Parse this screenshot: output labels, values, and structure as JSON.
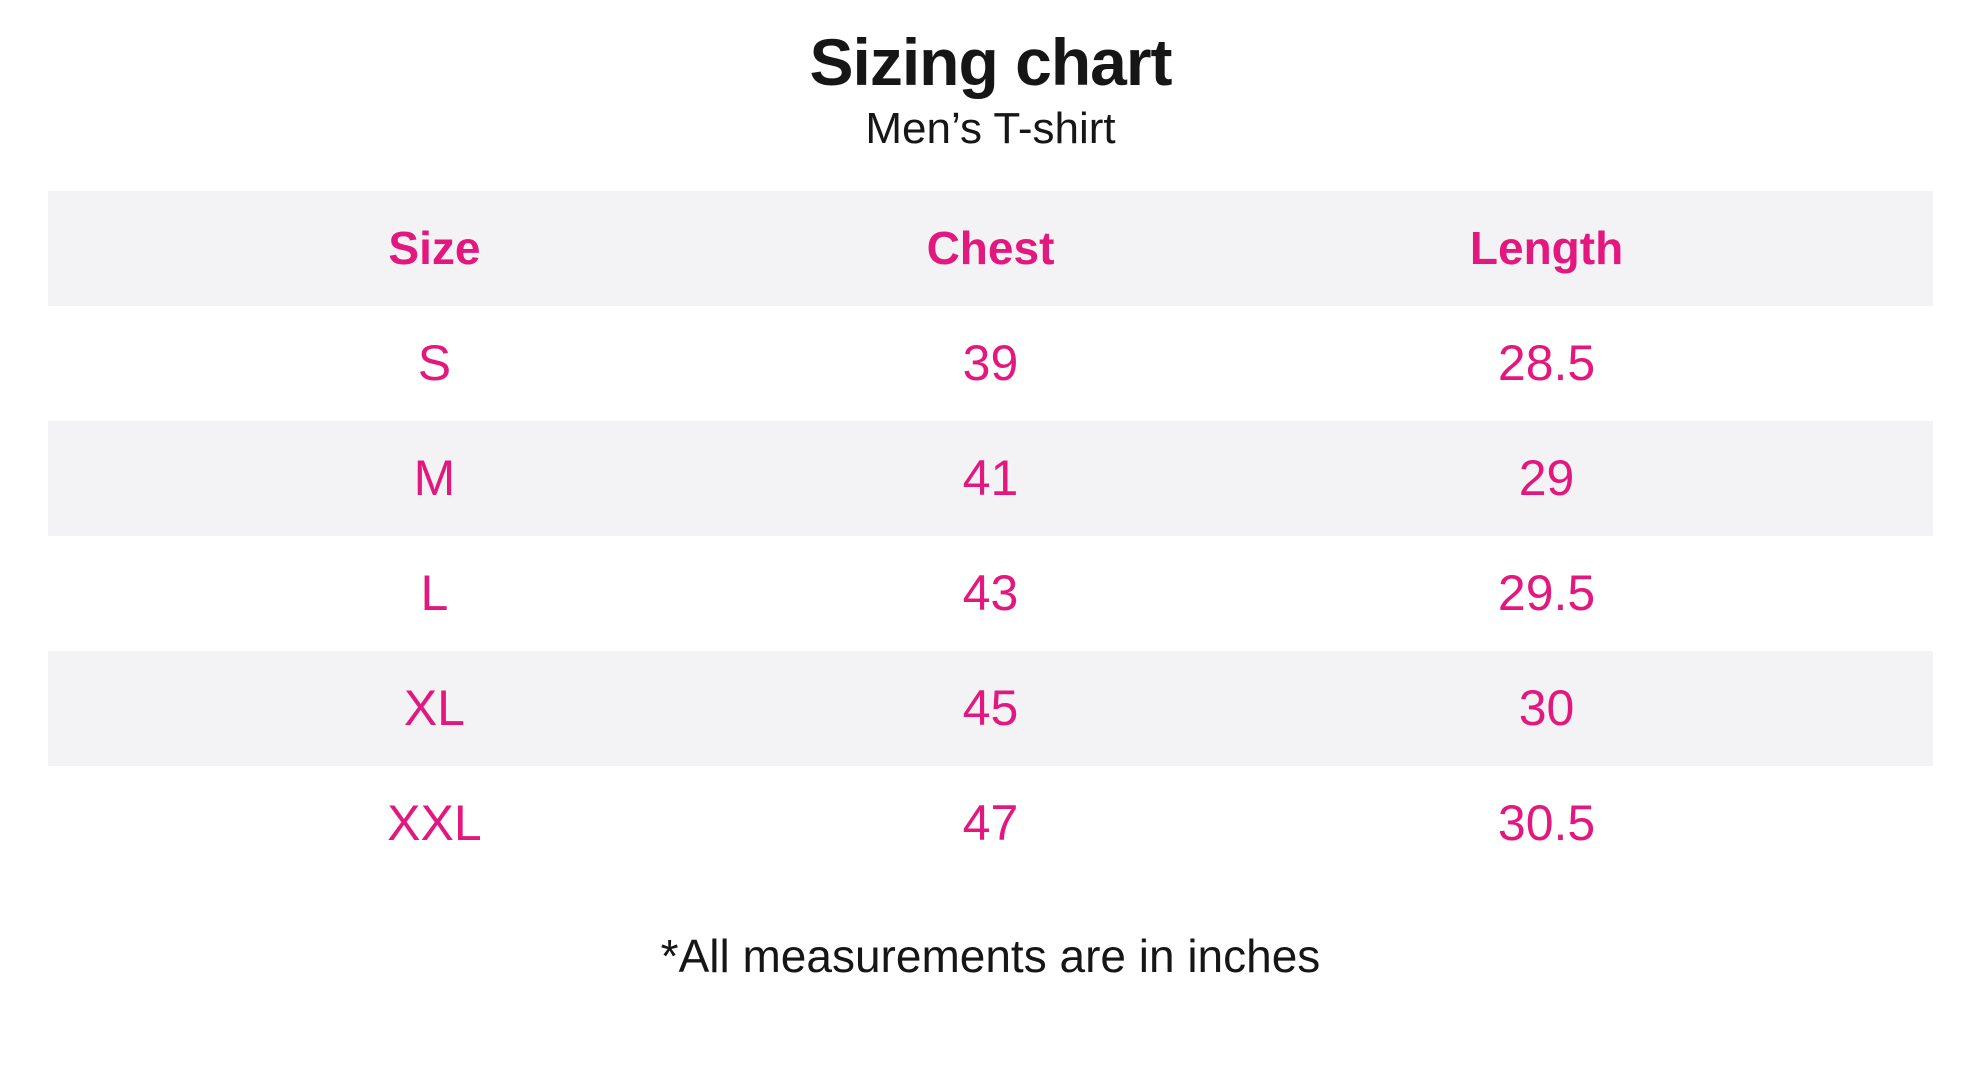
{
  "page": {
    "title": "Sizing chart",
    "subtitle": "Men’s T-shirt",
    "footnote": "*All measurements are in inches"
  },
  "table": {
    "header": {
      "size": "Size",
      "chest": "Chest",
      "length": "Length"
    },
    "rows": [
      {
        "size": "S",
        "chest": "39",
        "length": "28.5"
      },
      {
        "size": "M",
        "chest": "41",
        "length": "29"
      },
      {
        "size": "L",
        "chest": "43",
        "length": "29.5"
      },
      {
        "size": "XL",
        "chest": "45",
        "length": "30"
      },
      {
        "size": "XXL",
        "chest": "47",
        "length": "30.5"
      }
    ]
  },
  "colors": {
    "accent_pink": "#e3187e",
    "stripe_gray": "#f3f3f5",
    "text_black": "#161616"
  },
  "chart_data": {
    "type": "table",
    "title": "Sizing chart",
    "subtitle": "Men's T-shirt",
    "columns": [
      "Size",
      "Chest",
      "Length"
    ],
    "rows": [
      [
        "S",
        39,
        28.5
      ],
      [
        "M",
        41,
        29
      ],
      [
        "L",
        43,
        29.5
      ],
      [
        "XL",
        45,
        30
      ],
      [
        "XXL",
        47,
        30.5
      ]
    ],
    "units": "inches",
    "note": "*All measurements are in inches"
  }
}
